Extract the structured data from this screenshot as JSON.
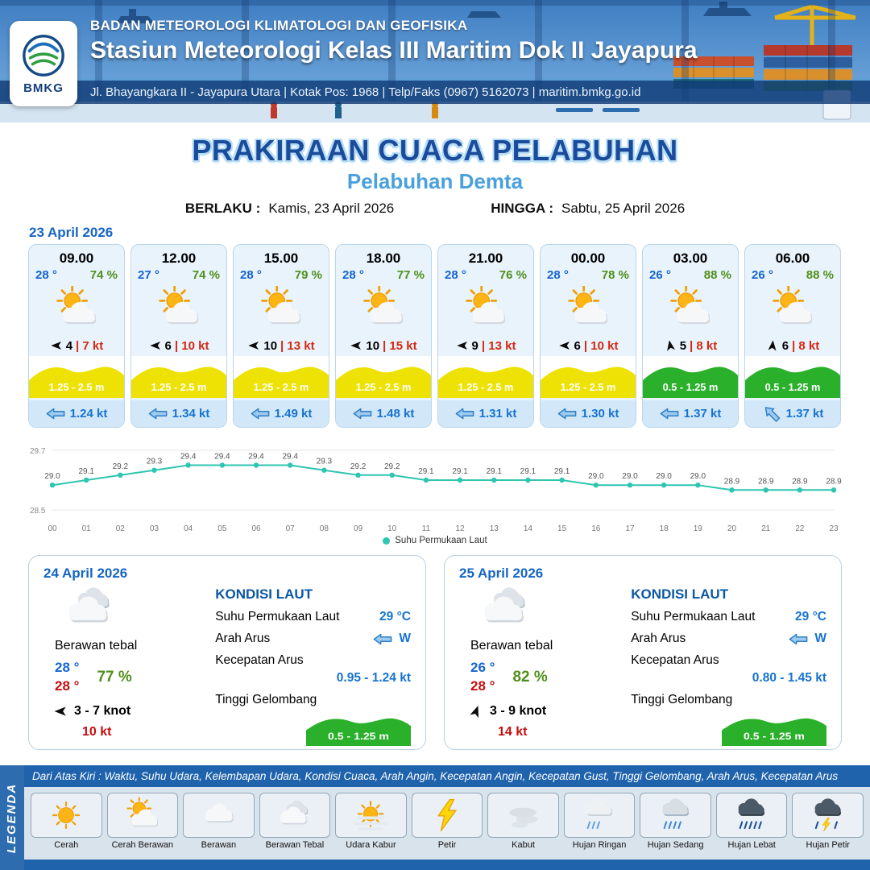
{
  "header": {
    "org": "BADAN METEOROLOGI KLIMATOLOGI DAN GEOFISIKA",
    "station": "Stasiun Meteorologi Kelas III Maritim Dok II Jayapura",
    "address": "Jl. Bhayangkara II - Jayapura Utara | Kotak Pos: 1968 | Telp/Faks (0967) 5162073 | maritim.bmkg.go.id",
    "logo_text": "BMKG"
  },
  "title": {
    "main": "PRAKIRAAN CUACA PELABUHAN",
    "sub": "Pelabuhan Demta",
    "berlaku_label": "BERLAKU :",
    "berlaku_value": "Kamis, 23 April 2026",
    "hingga_label": "HINGGA :",
    "hingga_value": "Sabtu, 25 April 2026"
  },
  "forecast_date": "23 April 2026",
  "hourly": [
    {
      "time": "09.00",
      "temp": "28 °",
      "rh": "74 %",
      "icon": "cerah-berawan",
      "wind_avg": "4",
      "wind_gust": "7 kt",
      "wind_dir_deg": 270,
      "wave": "1.25 - 2.5 m",
      "wave_color": "yellow",
      "current": "1.24 kt",
      "current_dir_deg": 0
    },
    {
      "time": "12.00",
      "temp": "27 °",
      "rh": "74 %",
      "icon": "cerah-berawan",
      "wind_avg": "6",
      "wind_gust": "10 kt",
      "wind_dir_deg": 270,
      "wave": "1.25 - 2.5 m",
      "wave_color": "yellow",
      "current": "1.34 kt",
      "current_dir_deg": 0
    },
    {
      "time": "15.00",
      "temp": "28 °",
      "rh": "79 %",
      "icon": "cerah-berawan",
      "wind_avg": "10",
      "wind_gust": "13 kt",
      "wind_dir_deg": 270,
      "wave": "1.25 - 2.5 m",
      "wave_color": "yellow",
      "current": "1.49 kt",
      "current_dir_deg": 0
    },
    {
      "time": "18.00",
      "temp": "28 °",
      "rh": "77 %",
      "icon": "cerah-berawan",
      "wind_avg": "10",
      "wind_gust": "15 kt",
      "wind_dir_deg": 270,
      "wave": "1.25 - 2.5 m",
      "wave_color": "yellow",
      "current": "1.48 kt",
      "current_dir_deg": 0
    },
    {
      "time": "21.00",
      "temp": "28 °",
      "rh": "76 %",
      "icon": "cerah-berawan",
      "wind_avg": "9",
      "wind_gust": "13 kt",
      "wind_dir_deg": 270,
      "wave": "1.25 - 2.5 m",
      "wave_color": "yellow",
      "current": "1.31 kt",
      "current_dir_deg": 0
    },
    {
      "time": "00.00",
      "temp": "28 °",
      "rh": "78 %",
      "icon": "cerah-berawan",
      "wind_avg": "6",
      "wind_gust": "10 kt",
      "wind_dir_deg": 270,
      "wave": "1.25 - 2.5 m",
      "wave_color": "yellow",
      "current": "1.30 kt",
      "current_dir_deg": 0
    },
    {
      "time": "03.00",
      "temp": "26 °",
      "rh": "88 %",
      "icon": "cerah-berawan",
      "wind_avg": "5",
      "wind_gust": "8 kt",
      "wind_dir_deg": 350,
      "wave": "0.5 - 1.25 m",
      "wave_color": "green",
      "current": "1.37 kt",
      "current_dir_deg": 0
    },
    {
      "time": "06.00",
      "temp": "26 °",
      "rh": "88 %",
      "icon": "cerah-berawan",
      "wind_avg": "6",
      "wind_gust": "8 kt",
      "wind_dir_deg": 5,
      "wave": "0.5 - 1.25 m",
      "wave_color": "green",
      "current": "1.37 kt",
      "current_dir_deg": 45
    }
  ],
  "chart_data": {
    "type": "line",
    "series_name": "Suhu Permukaan Laut",
    "x": [
      "00",
      "01",
      "02",
      "03",
      "04",
      "05",
      "06",
      "07",
      "08",
      "09",
      "10",
      "11",
      "12",
      "13",
      "14",
      "15",
      "16",
      "17",
      "18",
      "19",
      "20",
      "21",
      "22",
      "23"
    ],
    "values": [
      29.0,
      29.1,
      29.2,
      29.3,
      29.4,
      29.4,
      29.4,
      29.4,
      29.3,
      29.2,
      29.2,
      29.1,
      29.1,
      29.1,
      29.1,
      29.1,
      29.0,
      29.0,
      29.0,
      29.0,
      28.9,
      28.9,
      28.9,
      28.9
    ],
    "ylim": [
      28.5,
      29.7
    ],
    "grid": "horizontal-minmax",
    "legend_position": "bottom-center",
    "line_color": "#2fc5b0"
  },
  "daily": [
    {
      "date": "24 April 2026",
      "icon": "berawan-tebal",
      "condition": "Berawan tebal",
      "temp_min": "28 °",
      "temp_max": "28 °",
      "rh": "77 %",
      "wind_range": "3 - 7 knot",
      "wind_gust": "10 kt",
      "wind_dir_deg": 270,
      "sea": {
        "heading": "KONDISI LAUT",
        "sst_label": "Suhu Permukaan Laut",
        "sst_value": "29 °C",
        "arus_label": "Arah Arus",
        "arus_dir": "W",
        "kecepatan_label": "Kecepatan Arus",
        "kecepatan_value": "0.95 - 1.24 kt",
        "gelombang_label": "Tinggi Gelombang",
        "gelombang_value": "0.5 - 1.25 m"
      }
    },
    {
      "date": "25 April 2026",
      "icon": "berawan-tebal",
      "condition": "Berawan tebal",
      "temp_min": "26 °",
      "temp_max": "28 °",
      "rh": "82 %",
      "wind_range": "3 - 9 knot",
      "wind_gust": "14 kt",
      "wind_dir_deg": 20,
      "sea": {
        "heading": "KONDISI LAUT",
        "sst_label": "Suhu Permukaan Laut",
        "sst_value": "29 °C",
        "arus_label": "Arah Arus",
        "arus_dir": "W",
        "kecepatan_label": "Kecepatan Arus",
        "kecepatan_value": "0.80 - 1.45 kt",
        "gelombang_label": "Tinggi Gelombang",
        "gelombang_value": "0.5 - 1.25 m"
      }
    }
  ],
  "legend": {
    "title": "LEGENDA",
    "caption": "Dari Atas Kiri : Waktu, Suhu Udara, Kelembapan Udara, Kondisi Cuaca, Arah Angin, Kecepatan Angin, Kecepatan Gust, Tinggi Gelombang, Arah Arus, Kecepatan Arus",
    "items": [
      {
        "label": "Cerah",
        "icon": "cerah"
      },
      {
        "label": "Cerah Berawan",
        "icon": "cerah-berawan"
      },
      {
        "label": "Berawan",
        "icon": "berawan"
      },
      {
        "label": "Berawan Tebal",
        "icon": "berawan-tebal"
      },
      {
        "label": "Udara Kabur",
        "icon": "udara-kabur"
      },
      {
        "label": "Petir",
        "icon": "petir"
      },
      {
        "label": "Kabut",
        "icon": "kabut"
      },
      {
        "label": "Hujan Ringan",
        "icon": "hujan-ringan"
      },
      {
        "label": "Hujan Sedang",
        "icon": "hujan-sedang"
      },
      {
        "label": "Hujan Lebat",
        "icon": "hujan-lebat"
      },
      {
        "label": "Hujan Petir",
        "icon": "hujan-petir"
      }
    ]
  },
  "colors": {
    "temp_blue": "#1565d0",
    "humidity_green": "#4f8f1a",
    "gust_red": "#d42812",
    "current_blue": "#1673d1",
    "wave_yellow": "#eee204",
    "wave_green": "#2bb02b",
    "chart_teal": "#2fc5b0",
    "title_navy": "#1b4c9c",
    "title_glow": "#b5dcf5",
    "sub_blue": "#4aa0dc",
    "date_blue": "#1565c4",
    "legend_blue": "#1f63ad",
    "sea_heading_blue": "#0b57a4"
  }
}
